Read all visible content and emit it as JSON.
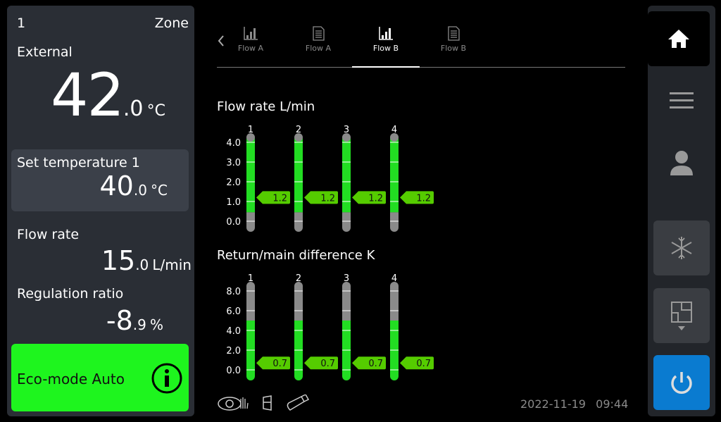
{
  "left": {
    "zone_number": "1",
    "zone_label": "Zone",
    "external_label": "External",
    "external_int": "42",
    "external_dec": ".0",
    "external_unit": "°C",
    "set_label": "Set temperature 1",
    "set_int": "40",
    "set_dec": ".0",
    "set_unit": "°C",
    "flow_label": "Flow rate",
    "flow_int": "15",
    "flow_dec": ".0",
    "flow_unit": "L/min",
    "reg_label": "Regulation ratio",
    "reg_int": "-8",
    "reg_dec": ".9",
    "reg_unit": "%",
    "eco_label": "Eco-mode Auto",
    "eco_color": "#1ef51e"
  },
  "tabs": [
    {
      "label": "Flow A",
      "icon": "bar-chart-icon",
      "active": false
    },
    {
      "label": "Flow A",
      "icon": "document-icon",
      "active": false
    },
    {
      "label": "Flow B",
      "icon": "bar-chart-icon",
      "active": true
    },
    {
      "label": "Flow B",
      "icon": "document-icon",
      "active": false
    }
  ],
  "chart_data": [
    {
      "type": "bar",
      "title": "Flow rate L/min",
      "categories": [
        "1",
        "2",
        "3",
        "4"
      ],
      "values": [
        1.2,
        1.2,
        1.2,
        1.2
      ],
      "value_labels": [
        "1.2",
        "1.2",
        "1.2",
        "1.2"
      ],
      "ylim": [
        0,
        4
      ],
      "ticks": [
        "0.0",
        "1.0",
        "2.0",
        "3.0",
        "4.0"
      ],
      "green_range": [
        0.45,
        4.2
      ],
      "gray_range": [
        -0.3,
        0.45
      ]
    },
    {
      "type": "bar",
      "title": "Return/main difference K",
      "categories": [
        "1",
        "2",
        "3",
        "4"
      ],
      "values": [
        0.7,
        0.7,
        0.7,
        0.7
      ],
      "value_labels": [
        "0.7",
        "0.7",
        "0.7",
        "0.7"
      ],
      "ylim": [
        0,
        8
      ],
      "ticks": [
        "0.0",
        "2.0",
        "4.0",
        "6.0",
        "8.0"
      ],
      "green_range": [
        -0.6,
        5.0
      ],
      "gray_range": [
        5.0,
        8.6
      ]
    }
  ],
  "footer": {
    "date": "2022-11-19",
    "time": "09:44",
    "icons": [
      "eye-hand-icon",
      "cabinet-icon",
      "usb-stick-icon"
    ]
  },
  "sidebar": {
    "items": [
      "home-icon",
      "menu-icon",
      "user-icon",
      "snowflake-icon",
      "floorplan-icon",
      "power-icon"
    ],
    "power_color": "#0a7bd0"
  },
  "colors": {
    "green": "#22dd22",
    "marker": "#55cc00",
    "gray": "#8a8a8a"
  }
}
